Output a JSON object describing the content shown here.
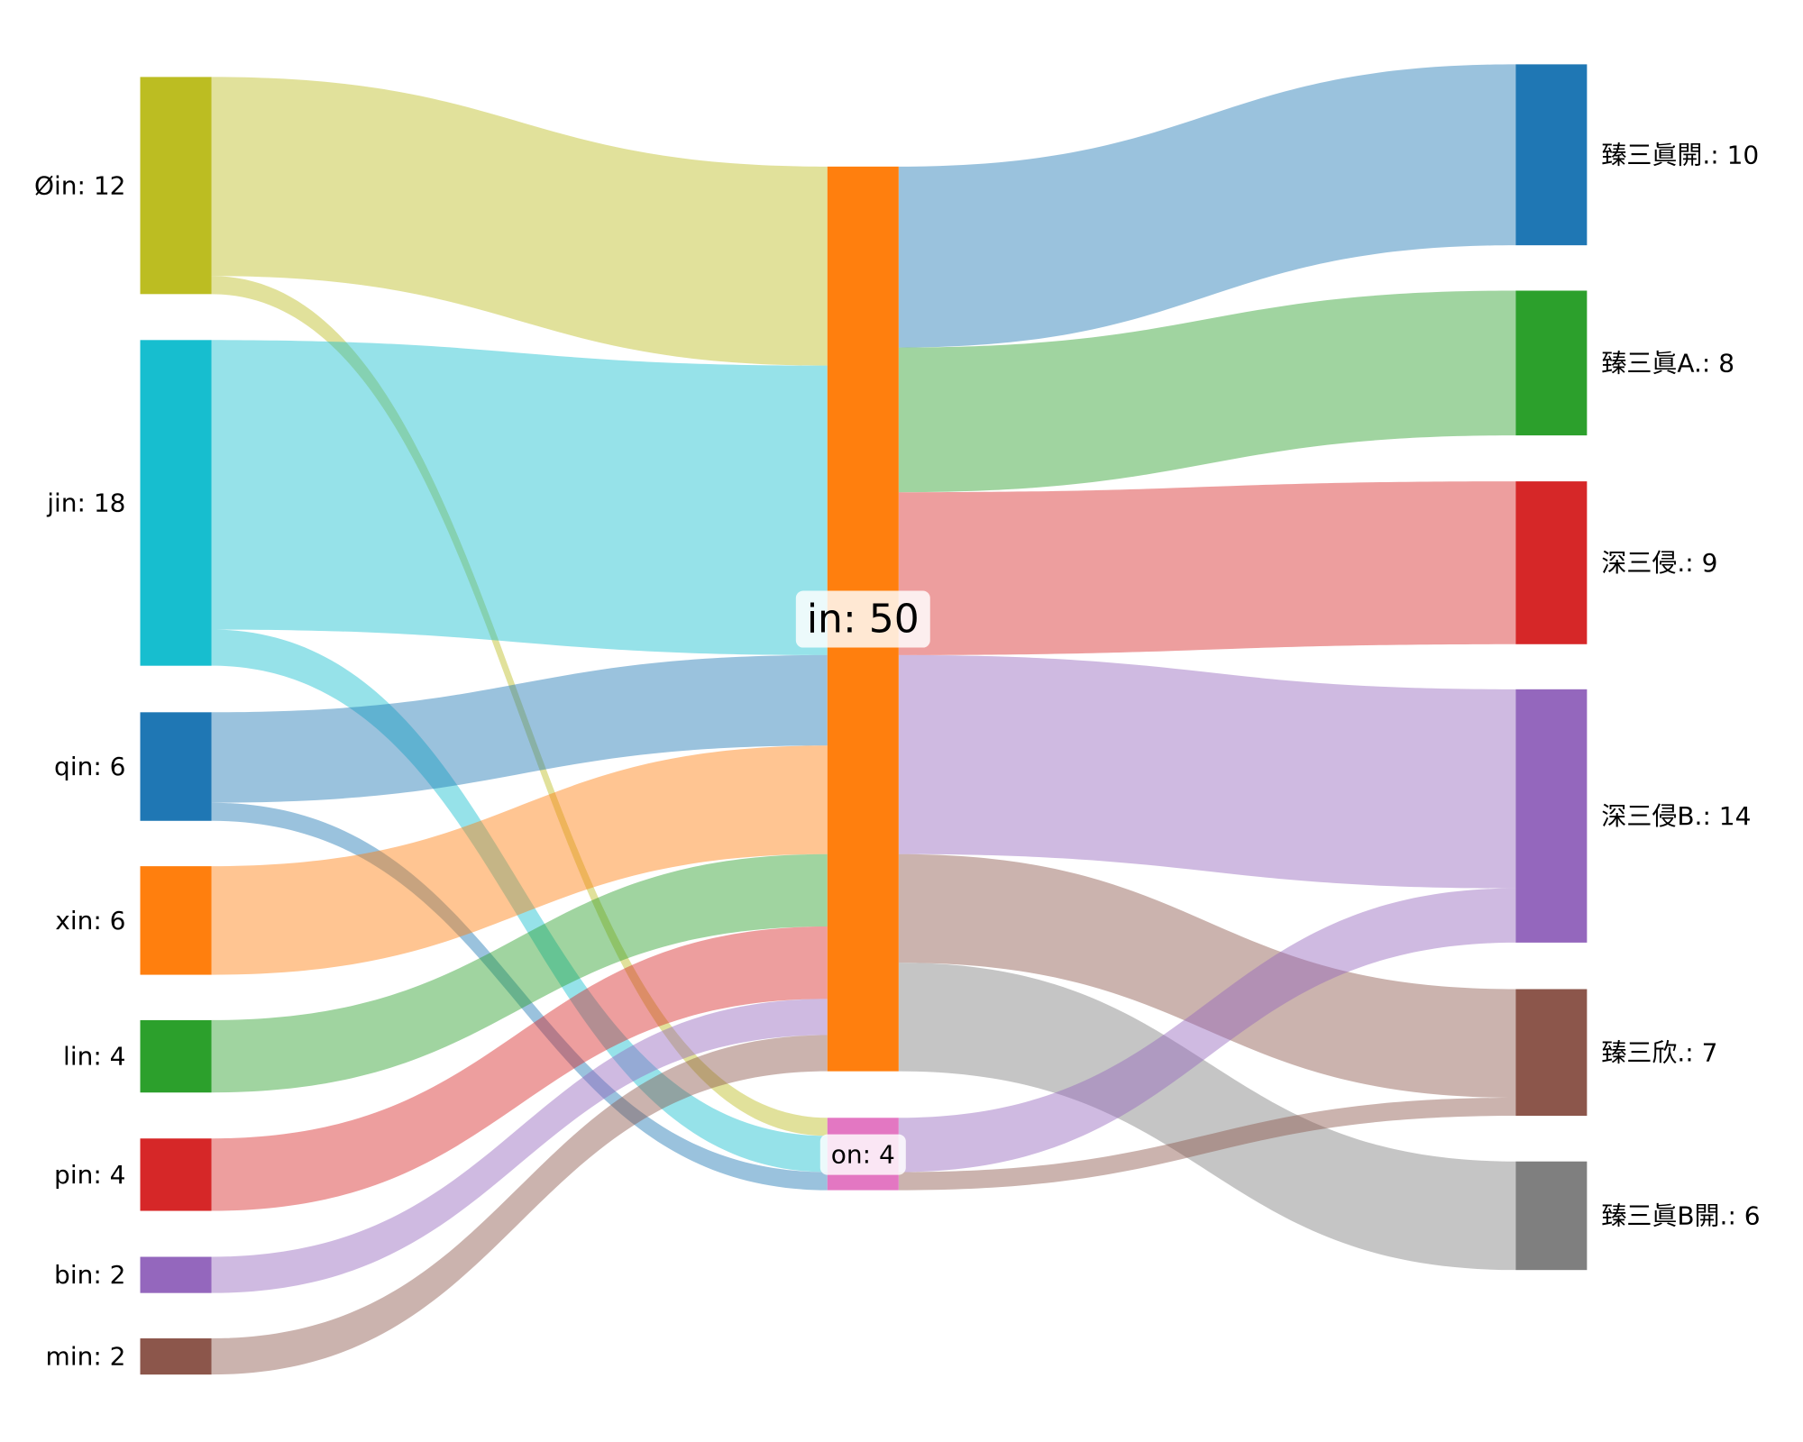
{
  "chart_data": {
    "type": "sankey",
    "nodes": [
      {
        "id": "oin",
        "label": "Øin: 12",
        "value": 12,
        "color": "#bcbd22",
        "column": 0
      },
      {
        "id": "jin",
        "label": "jin: 18",
        "value": 18,
        "color": "#17becf",
        "column": 0
      },
      {
        "id": "qin",
        "label": "qin: 6",
        "value": 6,
        "color": "#1f77b4",
        "column": 0
      },
      {
        "id": "xin",
        "label": "xin: 6",
        "value": 6,
        "color": "#ff7f0e",
        "column": 0
      },
      {
        "id": "lin",
        "label": "lin: 4",
        "value": 4,
        "color": "#2ca02c",
        "column": 0
      },
      {
        "id": "pin",
        "label": "pin: 4",
        "value": 4,
        "color": "#d62728",
        "column": 0
      },
      {
        "id": "bin",
        "label": "bin: 2",
        "value": 2,
        "color": "#9467bd",
        "column": 0
      },
      {
        "id": "min",
        "label": "min: 2",
        "value": 2,
        "color": "#8c564b",
        "column": 0
      },
      {
        "id": "in",
        "label": "in: 50",
        "value": 50,
        "color": "#ff7f0e",
        "column": 1
      },
      {
        "id": "on",
        "label": "on: 4",
        "value": 4,
        "color": "#e377c2",
        "column": 1
      },
      {
        "id": "r1",
        "label": "臻三眞開.: 10",
        "value": 10,
        "color": "#1f77b4",
        "column": 2
      },
      {
        "id": "r2",
        "label": "臻三眞A.: 8",
        "value": 8,
        "color": "#2ca02c",
        "column": 2
      },
      {
        "id": "r3",
        "label": "深三侵.: 9",
        "value": 9,
        "color": "#d62728",
        "column": 2
      },
      {
        "id": "r4",
        "label": "深三侵B.: 14",
        "value": 14,
        "color": "#9467bd",
        "column": 2
      },
      {
        "id": "r5",
        "label": "臻三欣.: 7",
        "value": 7,
        "color": "#8c564b",
        "column": 2
      },
      {
        "id": "r6",
        "label": "臻三眞B開.: 6",
        "value": 6,
        "color": "#7f7f7f",
        "column": 2
      }
    ],
    "links": [
      {
        "source": "oin",
        "target": "in",
        "value": 11
      },
      {
        "source": "oin",
        "target": "on",
        "value": 1
      },
      {
        "source": "jin",
        "target": "in",
        "value": 16
      },
      {
        "source": "jin",
        "target": "on",
        "value": 2
      },
      {
        "source": "qin",
        "target": "in",
        "value": 5
      },
      {
        "source": "qin",
        "target": "on",
        "value": 1
      },
      {
        "source": "xin",
        "target": "in",
        "value": 6
      },
      {
        "source": "lin",
        "target": "in",
        "value": 4
      },
      {
        "source": "pin",
        "target": "in",
        "value": 4
      },
      {
        "source": "bin",
        "target": "in",
        "value": 2
      },
      {
        "source": "min",
        "target": "in",
        "value": 2
      },
      {
        "source": "in",
        "target": "r1",
        "value": 10
      },
      {
        "source": "in",
        "target": "r2",
        "value": 8
      },
      {
        "source": "in",
        "target": "r3",
        "value": 9
      },
      {
        "source": "in",
        "target": "r4",
        "value": 11
      },
      {
        "source": "in",
        "target": "r5",
        "value": 6
      },
      {
        "source": "in",
        "target": "r6",
        "value": 6
      },
      {
        "source": "on",
        "target": "r4",
        "value": 3
      },
      {
        "source": "on",
        "target": "r5",
        "value": 1
      }
    ]
  }
}
